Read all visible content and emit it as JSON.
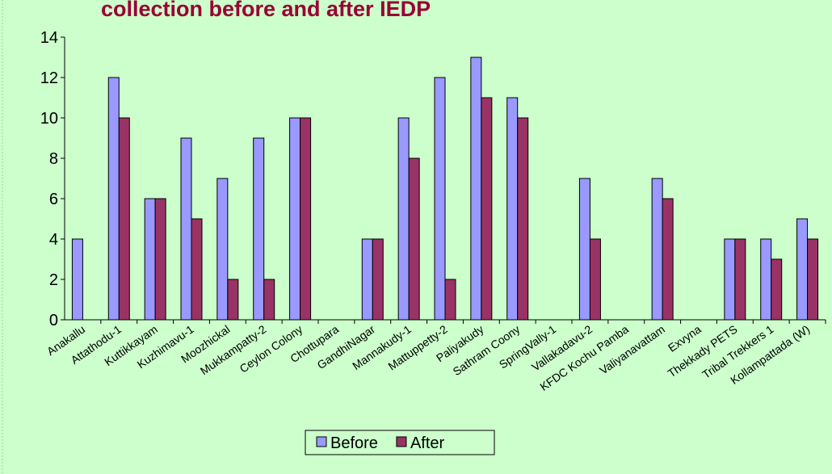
{
  "chart_data": {
    "type": "bar",
    "title": "collection before and after IEDP",
    "categories": [
      "Anakallu",
      "Attathodu-1",
      "Kuttikkayam",
      "Kuzhimavu-1",
      "Moozhickal",
      "Mukkampatty-2",
      "Ceylon Colony",
      "Chottupara",
      "GandhiNagar",
      "Mannakudy-1",
      "Mattuppetty-2",
      "Paliyakudy",
      "Sathram Coony",
      "SpringVally-1",
      "Vallakadavu-2",
      "KFDC Kochu Pamba",
      "Valiyanavattam",
      "Exvyna",
      "Thekkady PETS",
      "Tribal Trekkers 1",
      "Kollampattada (W)"
    ],
    "series": [
      {
        "name": "Before",
        "color": "#9999ff",
        "values": [
          4,
          12,
          6,
          9,
          7,
          9,
          10,
          0,
          4,
          10,
          12,
          13,
          11,
          0,
          7,
          0,
          7,
          0,
          4,
          4,
          5
        ]
      },
      {
        "name": "After",
        "color": "#993366",
        "values": [
          0,
          10,
          6,
          5,
          2,
          2,
          10,
          0,
          4,
          8,
          2,
          11,
          10,
          0,
          4,
          0,
          6,
          0,
          4,
          3,
          4
        ]
      }
    ],
    "ylim": [
      0,
      14
    ],
    "yticks": [
      0,
      2,
      4,
      6,
      8,
      10,
      12,
      14
    ],
    "legend": "bottom"
  }
}
